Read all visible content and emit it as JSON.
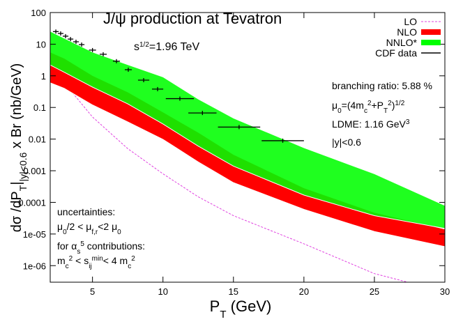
{
  "chart_data": {
    "type": "band",
    "title": "J/ψ production at Tevatron",
    "annotations": [
      [
        "s",
        "1/2",
        "=1.96 TeV"
      ],
      [
        "branching ratio: 5.88 %"
      ],
      [
        "μ",
        "0",
        "=(4m",
        "c",
        "2",
        "+P",
        "T",
        "2",
        ")",
        "1/2"
      ],
      [
        "LDME: 1.16 GeV",
        "3"
      ],
      [
        "|y|<0.6"
      ],
      [
        "uncertainties:"
      ],
      [
        "μ",
        "0",
        "/2 < μ",
        "f,r",
        "<2 μ",
        "0"
      ],
      [
        "for α",
        "s",
        "5",
        " contributions:"
      ],
      [
        "m",
        "c",
        "2",
        " < s",
        "ij",
        "min",
        "< 4 m",
        "c",
        "2"
      ]
    ],
    "xlabel": [
      "P",
      "T",
      " (GeV)"
    ],
    "ylabel": [
      "dσ /dP",
      "T",
      "|",
      "|y|<0.6",
      " x Br  (nb/GeV)"
    ],
    "xlim": [
      2,
      30
    ],
    "xticks": [
      5,
      10,
      15,
      20,
      25,
      30
    ],
    "ylim": [
      3e-07,
      100
    ],
    "ylog": true,
    "yticks": [
      100,
      10,
      1,
      0.1,
      0.01,
      0.001,
      0.0001,
      {
        "value": 1e-05,
        "label": "1e-05"
      },
      {
        "value": 1e-06,
        "label": "1e-06"
      }
    ],
    "legend": "top-right",
    "x": [
      2,
      3,
      5,
      7.5,
      10,
      12.5,
      15,
      20,
      25,
      30
    ],
    "series": [
      {
        "name": "LO",
        "style": "dashed",
        "color": "#e040e0",
        "values": [
          2.0,
          0.6,
          0.05,
          0.005,
          0.0008,
          0.00015,
          3.8e-05,
          4.9e-06,
          5.6e-07,
          1.5e-07
        ]
      },
      {
        "name": "NLO",
        "style": "band",
        "color": "#ff0000",
        "upper": [
          5.5,
          3.5,
          1.0,
          0.3,
          0.07,
          0.016,
          0.0032,
          0.00028,
          4.7e-05,
          1.4e-05
        ],
        "lower": [
          0.6,
          0.4,
          0.12,
          0.035,
          0.0098,
          0.0019,
          0.00042,
          6e-05,
          1.2e-05,
          4e-06
        ]
      },
      {
        "name": "NNLO*",
        "style": "band",
        "color": "#00ff00",
        "upper": [
          25,
          15,
          5.5,
          2.2,
          0.9,
          0.18,
          0.045,
          0.0052,
          0.00078,
          7.8e-05
        ],
        "lower": [
          2.2,
          1.3,
          0.44,
          0.13,
          0.03,
          0.006,
          0.0014,
          0.00017,
          3.8e-05,
          1.5e-05
        ]
      },
      {
        "name": "CDF data",
        "style": "errorbar",
        "color": "#000000",
        "x": [
          2.4,
          2.74,
          3.09,
          3.44,
          3.83,
          4.23,
          5.0,
          5.76,
          6.7,
          7.54,
          8.63,
          9.62,
          11.2,
          12.8,
          15.4,
          18.5
        ],
        "xerr": [
          0.2,
          0.2,
          0.2,
          0.2,
          0.2,
          0.2,
          0.25,
          0.25,
          0.25,
          0.25,
          0.4,
          0.4,
          1,
          1,
          1.5,
          1.5
        ],
        "values": [
          25,
          21.8,
          17.9,
          14.5,
          11.9,
          9.7,
          6.5,
          4.8,
          2.9,
          1.56,
          0.73,
          0.38,
          0.19,
          0.067,
          0.024,
          0.0089
        ]
      }
    ]
  }
}
